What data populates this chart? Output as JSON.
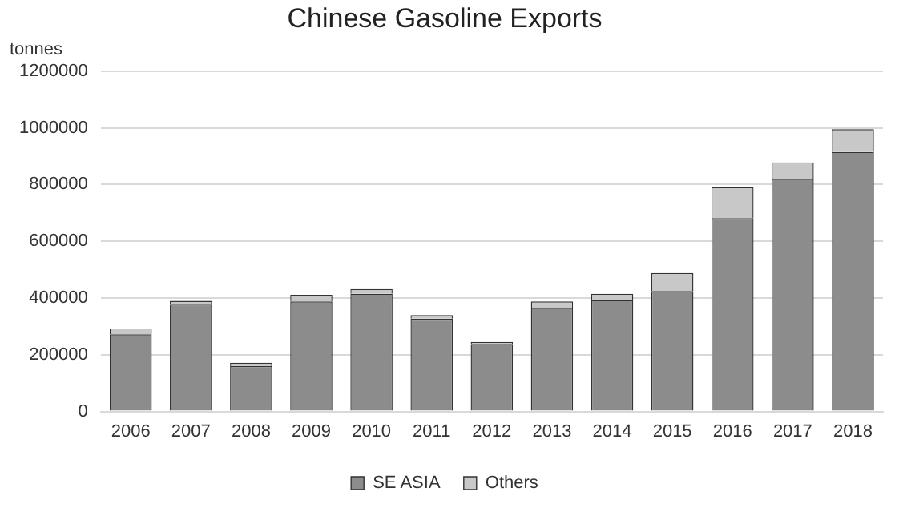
{
  "chart_data": {
    "type": "bar",
    "title": "Chinese Gasoline Exports",
    "ylabel": "tonnes",
    "categories": [
      "2006",
      "2007",
      "2008",
      "2009",
      "2010",
      "2011",
      "2012",
      "2013",
      "2014",
      "2015",
      "2016",
      "2017",
      "2018"
    ],
    "series": [
      {
        "name": "SE ASIA",
        "color": "#8c8c8c",
        "values": [
          272000,
          377000,
          160000,
          388000,
          415000,
          327000,
          238000,
          365000,
          393000,
          425000,
          682000,
          820000,
          915000
        ]
      },
      {
        "name": "Others",
        "color": "#c8c8c8",
        "values": [
          21000,
          13000,
          12000,
          23000,
          17000,
          13000,
          7000,
          23000,
          22000,
          63000,
          108000,
          58000,
          80000
        ]
      }
    ],
    "stacked": true,
    "ylim": [
      0,
      1200000
    ],
    "yticks": [
      0,
      200000,
      400000,
      600000,
      800000,
      1000000,
      1200000
    ],
    "grid": "y",
    "legend": "bottom"
  }
}
